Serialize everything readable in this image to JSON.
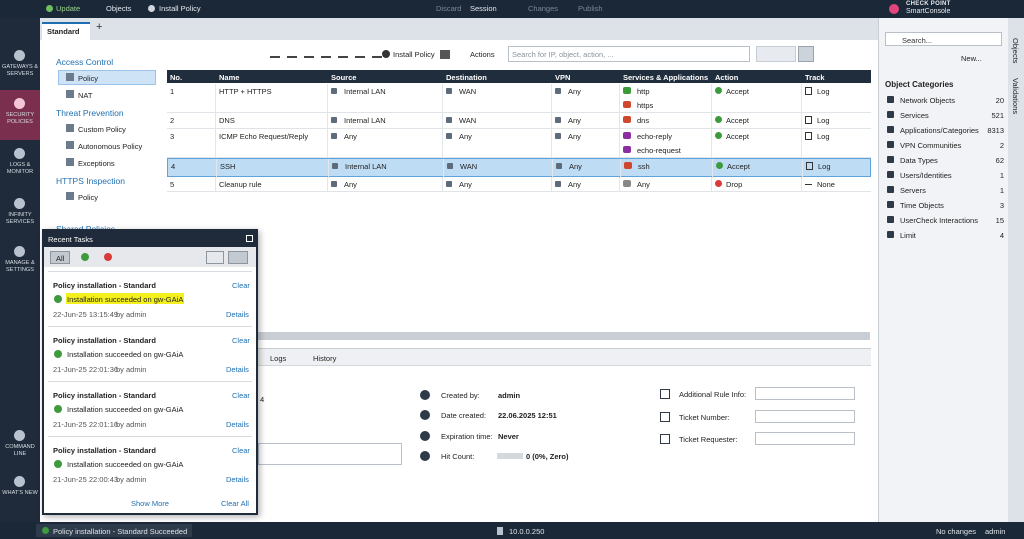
{
  "top_bar": {
    "update": "Update",
    "objects": "Objects",
    "install_policy": "Install Policy",
    "discard": "Discard",
    "session": "Session",
    "changes": "Changes",
    "publish": "Publish",
    "brand": "CHECK POINT",
    "product": "SmartConsole"
  },
  "left_nav": [
    "GATEWAYS & SERVERS",
    "SECURITY POLICIES",
    "LOGS & MONITOR",
    "INFINITY SERVICES",
    "MANAGE & SETTINGS",
    "COMMAND LINE",
    "WHAT'S NEW"
  ],
  "tabs": [
    "Standard"
  ],
  "policy_tree": [
    {
      "title": "Access Control",
      "items": [
        "Policy",
        "NAT"
      ]
    },
    {
      "title": "Threat Prevention",
      "items": [
        "Custom Policy",
        "Autonomous Policy",
        "Exceptions"
      ]
    },
    {
      "title": "HTTPS Inspection",
      "items": [
        "Policy"
      ]
    },
    {
      "title": "Shared Policies",
      "items": []
    }
  ],
  "toolbar": {
    "install_policy": "Install Policy",
    "actions": "Actions",
    "search_placeholder": "Search for IP, object, action, ..."
  },
  "rule_table": {
    "columns": [
      "No.",
      "Name",
      "Source",
      "Destination",
      "VPN",
      "Services & Applications",
      "Action",
      "Track"
    ],
    "rows": [
      {
        "no": 1,
        "name": "HTTP + HTTPS",
        "source": "Internal LAN",
        "destination": "WAN",
        "vpn": "Any",
        "services": [
          "http",
          "https"
        ],
        "action": "Accept",
        "track": "Log"
      },
      {
        "no": 2,
        "name": "DNS",
        "source": "Internal LAN",
        "destination": "WAN",
        "vpn": "Any",
        "services": [
          "dns"
        ],
        "action": "Accept",
        "track": "Log"
      },
      {
        "no": 3,
        "name": "ICMP Echo Request/Reply",
        "source": "Any",
        "destination": "Any",
        "vpn": "Any",
        "services": [
          "echo-reply",
          "echo-request"
        ],
        "action": "Accept",
        "track": "Log"
      },
      {
        "no": 4,
        "name": "SSH",
        "source": "Internal LAN",
        "destination": "WAN",
        "vpn": "Any",
        "services": [
          "ssh"
        ],
        "action": "Accept",
        "track": "Log"
      },
      {
        "no": 5,
        "name": "Cleanup rule",
        "source": "Any",
        "destination": "Any",
        "vpn": "Any",
        "services": [
          "Any"
        ],
        "action": "Drop",
        "track": "None"
      }
    ]
  },
  "details": {
    "tabs": [
      "Logs",
      "History"
    ],
    "fragment": "4",
    "fields": [
      {
        "label": "Created by:",
        "value": "admin"
      },
      {
        "label": "Date created:",
        "value": "22.06.2025 12:51"
      },
      {
        "label": "Expiration time:",
        "value": "Never"
      },
      {
        "label": "Hit Count:",
        "value": "0 (0%, Zero)"
      }
    ],
    "extra_fields": [
      "Additional Rule Info:",
      "Ticket Number:",
      "Ticket Requester:"
    ]
  },
  "recent_tasks": {
    "title": "Recent Tasks",
    "filter_all": "All",
    "tasks": [
      {
        "title": "Policy installation - Standard",
        "clear": "Clear",
        "status": "Installation succeeded on gw-GAiA",
        "time": "22-Jun-25 13:15:49",
        "by": "by admin",
        "details": "Details"
      },
      {
        "title": "Policy installation - Standard",
        "clear": "Clear",
        "status": "Installation succeeded on gw-GAiA",
        "time": "21-Jun-25 22:01:36",
        "by": "by admin",
        "details": "Details"
      },
      {
        "title": "Policy installation - Standard",
        "clear": "Clear",
        "status": "Installation succeeded on gw-GAiA",
        "time": "21-Jun-25 22:01:16",
        "by": "by admin",
        "details": "Details"
      },
      {
        "title": "Policy installation - Standard",
        "clear": "Clear",
        "status": "Installation succeeded on gw-GAiA",
        "time": "21-Jun-25 22:00:43",
        "by": "by admin",
        "details": "Details"
      }
    ],
    "show_more": "Show More",
    "clear_all": "Clear All"
  },
  "status_bar": {
    "task": "Policy installation - Standard Succeeded",
    "ip": "10.0.0.250",
    "changes": "No changes",
    "user": "admin"
  },
  "objects_panel": {
    "search_placeholder": "Search...",
    "new": "New...",
    "heading": "Object Categories",
    "categories": [
      {
        "name": "Network Objects",
        "count": 20
      },
      {
        "name": "Services",
        "count": 521
      },
      {
        "name": "Applications/Categories",
        "count": 8313
      },
      {
        "name": "VPN Communities",
        "count": 2
      },
      {
        "name": "Data Types",
        "count": 62
      },
      {
        "name": "Users/Identities",
        "count": 1
      },
      {
        "name": "Servers",
        "count": 1
      },
      {
        "name": "Time Objects",
        "count": 3
      },
      {
        "name": "UserCheck Interactions",
        "count": 15
      },
      {
        "name": "Limit",
        "count": 4
      }
    ]
  },
  "side_tabs": [
    "Objects",
    "Validations"
  ]
}
